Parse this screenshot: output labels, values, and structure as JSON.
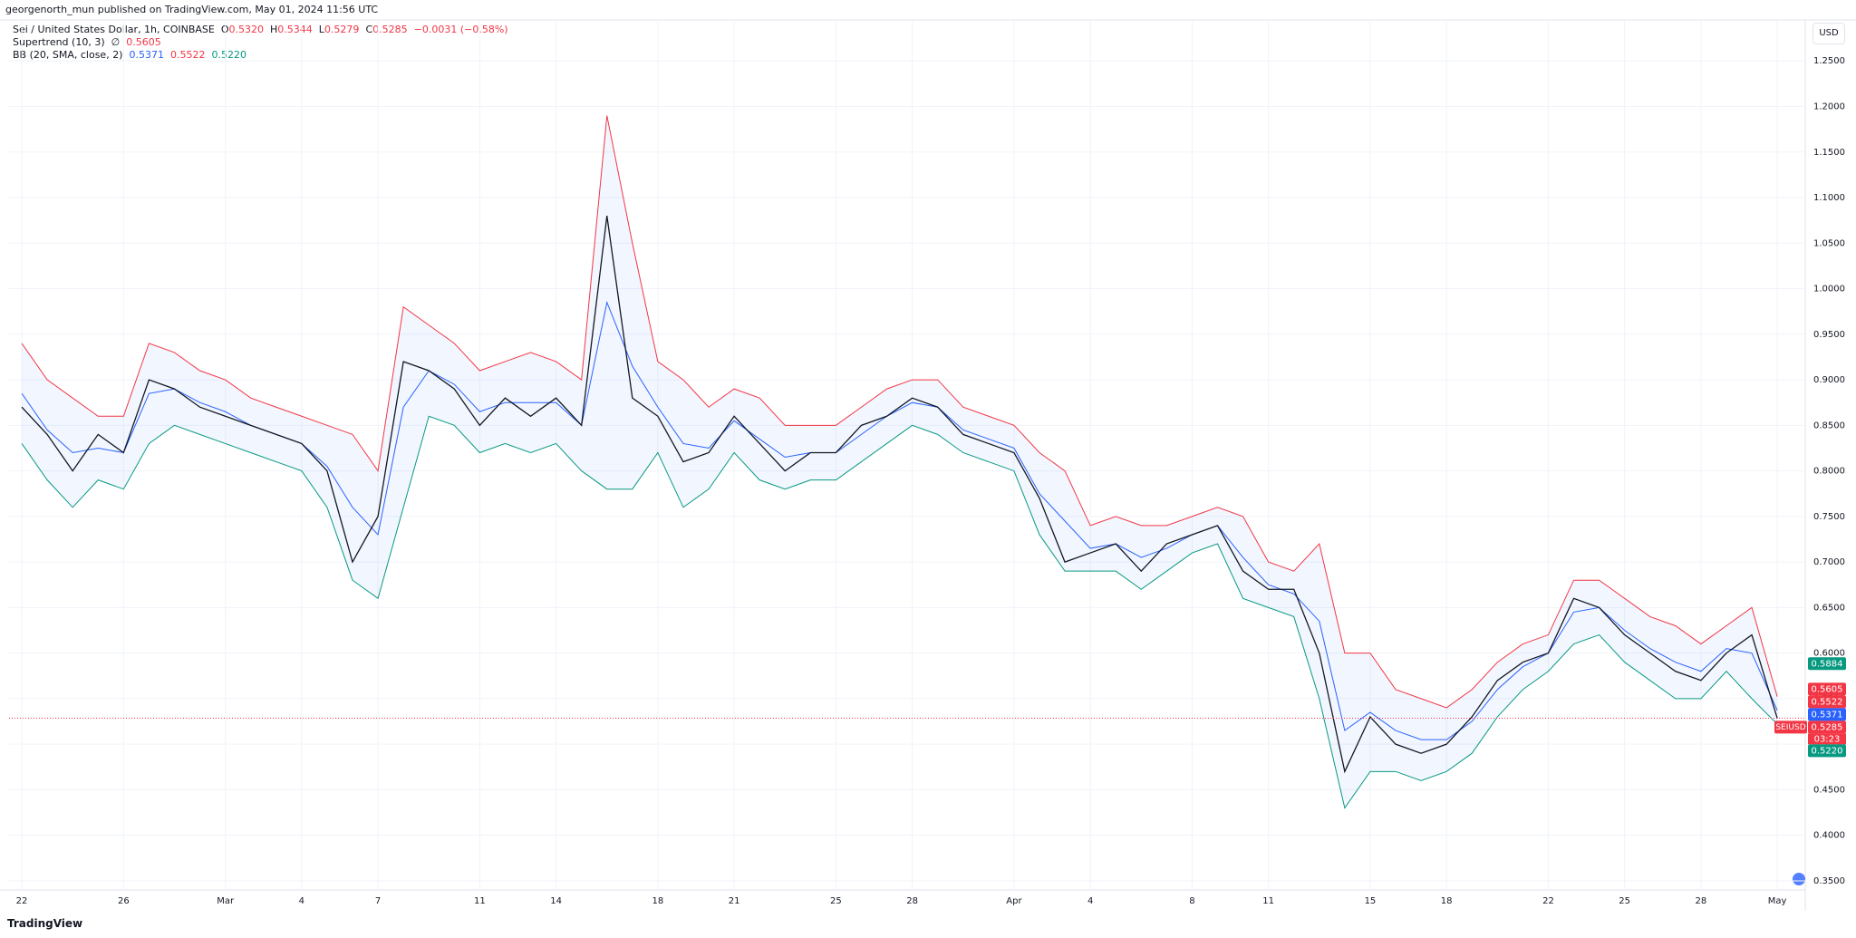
{
  "header": {
    "published": "georgenorth_mun published on TradingView.com, May 01, 2024 11:56 UTC",
    "brand": "TradingView",
    "currency": "USD"
  },
  "chart_data": {
    "type": "line",
    "title": "Sei / United States Dollar, 1h, COINBASE",
    "ohlc": {
      "o_label": "O",
      "o": "0.5320",
      "h_label": "H",
      "h": "0.5344",
      "l_label": "L",
      "l": "0.5279",
      "c_label": "C",
      "c": "0.5285",
      "change": "−0.0031 (−0.58%)"
    },
    "supertrend": {
      "label": "Supertrend (10, 3)",
      "symbol": "∅",
      "value": "0.5605"
    },
    "bb": {
      "label": "BB (20, SMA, close, 2)",
      "basis": "0.5371",
      "upper": "0.5522",
      "lower": "0.5220"
    },
    "x": [
      0,
      1,
      2,
      3,
      4,
      5,
      6,
      7,
      8,
      9,
      10,
      11,
      12,
      13,
      14,
      15,
      16,
      17,
      18,
      19,
      20,
      21,
      22,
      23,
      24,
      25,
      26,
      27,
      28,
      29,
      30,
      31,
      32,
      33,
      34,
      35,
      36,
      37,
      38,
      39,
      40,
      41,
      42,
      43,
      44,
      45,
      46,
      47,
      48,
      49,
      50,
      51,
      52,
      53,
      54,
      55,
      56,
      57,
      58,
      59,
      60,
      61,
      62,
      63,
      64,
      65,
      66,
      67,
      68,
      69
    ],
    "series": [
      {
        "color": "#131722",
        "values": [
          0.87,
          0.84,
          0.8,
          0.84,
          0.82,
          0.9,
          0.89,
          0.87,
          0.86,
          0.85,
          0.84,
          0.83,
          0.8,
          0.7,
          0.75,
          0.92,
          0.91,
          0.89,
          0.85,
          0.88,
          0.86,
          0.88,
          0.85,
          1.08,
          0.88,
          0.86,
          0.81,
          0.82,
          0.86,
          0.83,
          0.8,
          0.82,
          0.82,
          0.85,
          0.86,
          0.88,
          0.87,
          0.84,
          0.83,
          0.82,
          0.77,
          0.7,
          0.71,
          0.72,
          0.69,
          0.72,
          0.73,
          0.74,
          0.69,
          0.67,
          0.67,
          0.6,
          0.47,
          0.53,
          0.5,
          0.49,
          0.5,
          0.53,
          0.57,
          0.59,
          0.6,
          0.66,
          0.65,
          0.62,
          0.6,
          0.58,
          0.57,
          0.6,
          0.62,
          0.5285
        ]
      },
      {
        "color": "#f23645",
        "values": [
          0.94,
          0.9,
          0.88,
          0.86,
          0.86,
          0.94,
          0.93,
          0.91,
          0.9,
          0.88,
          0.87,
          0.86,
          0.85,
          0.84,
          0.8,
          0.98,
          0.96,
          0.94,
          0.91,
          0.92,
          0.93,
          0.92,
          0.9,
          1.19,
          1.05,
          0.92,
          0.9,
          0.87,
          0.89,
          0.88,
          0.85,
          0.85,
          0.85,
          0.87,
          0.89,
          0.9,
          0.9,
          0.87,
          0.86,
          0.85,
          0.82,
          0.8,
          0.74,
          0.75,
          0.74,
          0.74,
          0.75,
          0.76,
          0.75,
          0.7,
          0.69,
          0.72,
          0.6,
          0.6,
          0.56,
          0.55,
          0.54,
          0.56,
          0.59,
          0.61,
          0.62,
          0.68,
          0.68,
          0.66,
          0.64,
          0.63,
          0.61,
          0.63,
          0.65,
          0.5522
        ]
      },
      {
        "color": "#089981",
        "values": [
          0.83,
          0.79,
          0.76,
          0.79,
          0.78,
          0.83,
          0.85,
          0.84,
          0.83,
          0.82,
          0.81,
          0.8,
          0.76,
          0.68,
          0.66,
          0.76,
          0.86,
          0.85,
          0.82,
          0.83,
          0.82,
          0.83,
          0.8,
          0.78,
          0.78,
          0.82,
          0.76,
          0.78,
          0.82,
          0.79,
          0.78,
          0.79,
          0.79,
          0.81,
          0.83,
          0.85,
          0.84,
          0.82,
          0.81,
          0.8,
          0.73,
          0.69,
          0.69,
          0.69,
          0.67,
          0.69,
          0.71,
          0.72,
          0.66,
          0.65,
          0.64,
          0.55,
          0.43,
          0.47,
          0.47,
          0.46,
          0.47,
          0.49,
          0.53,
          0.56,
          0.58,
          0.61,
          0.62,
          0.59,
          0.57,
          0.55,
          0.55,
          0.58,
          0.55,
          0.522
        ]
      },
      {
        "color": "#2962ff",
        "values": [
          0.885,
          0.845,
          0.82,
          0.825,
          0.82,
          0.885,
          0.89,
          0.875,
          0.865,
          0.85,
          0.84,
          0.83,
          0.805,
          0.76,
          0.73,
          0.87,
          0.91,
          0.895,
          0.865,
          0.875,
          0.875,
          0.875,
          0.85,
          0.985,
          0.915,
          0.87,
          0.83,
          0.825,
          0.855,
          0.835,
          0.815,
          0.82,
          0.82,
          0.84,
          0.86,
          0.875,
          0.87,
          0.845,
          0.835,
          0.825,
          0.775,
          0.745,
          0.715,
          0.72,
          0.705,
          0.715,
          0.73,
          0.74,
          0.705,
          0.675,
          0.665,
          0.635,
          0.515,
          0.535,
          0.515,
          0.505,
          0.505,
          0.525,
          0.56,
          0.585,
          0.6,
          0.645,
          0.65,
          0.625,
          0.605,
          0.59,
          0.58,
          0.605,
          0.6,
          0.5371
        ]
      }
    ],
    "band_fill": "rgba(41,98,255,0.06)",
    "xlim": [
      -0.5,
      70.1
    ],
    "xticks": [
      {
        "value": 0,
        "label": "22"
      },
      {
        "value": 4,
        "label": "26"
      },
      {
        "value": 8,
        "label": "Mar"
      },
      {
        "value": 11,
        "label": "4"
      },
      {
        "value": 14,
        "label": "7"
      },
      {
        "value": 18,
        "label": "11"
      },
      {
        "value": 21,
        "label": "14"
      },
      {
        "value": 25,
        "label": "18"
      },
      {
        "value": 28,
        "label": "21"
      },
      {
        "value": 32,
        "label": "25"
      },
      {
        "value": 35,
        "label": "28"
      },
      {
        "value": 39,
        "label": "Apr"
      },
      {
        "value": 42,
        "label": "4"
      },
      {
        "value": 46,
        "label": "8"
      },
      {
        "value": 49,
        "label": "11"
      },
      {
        "value": 53,
        "label": "15"
      },
      {
        "value": 56,
        "label": "18"
      },
      {
        "value": 60,
        "label": "22"
      },
      {
        "value": 63,
        "label": "25"
      },
      {
        "value": 66,
        "label": "28"
      },
      {
        "value": 69,
        "label": "May"
      }
    ],
    "ylim": [
      0.34,
      1.295
    ],
    "yticks": [
      {
        "value": 0.35,
        "label": "0.3500"
      },
      {
        "value": 0.4,
        "label": "0.4000"
      },
      {
        "value": 0.45,
        "label": "0.4500"
      },
      {
        "value": 0.5,
        "label": "0.5000"
      },
      {
        "value": 0.55,
        "label": "0.5500"
      },
      {
        "value": 0.6,
        "label": "0.6000"
      },
      {
        "value": 0.65,
        "label": "0.6500"
      },
      {
        "value": 0.7,
        "label": "0.7000"
      },
      {
        "value": 0.75,
        "label": "0.7500"
      },
      {
        "value": 0.8,
        "label": "0.8000"
      },
      {
        "value": 0.85,
        "label": "0.8500"
      },
      {
        "value": 0.9,
        "label": "0.9000"
      },
      {
        "value": 0.95,
        "label": "0.9500"
      },
      {
        "value": 1.0,
        "label": "1.0000"
      },
      {
        "value": 1.05,
        "label": "1.0500"
      },
      {
        "value": 1.1,
        "label": "1.1000"
      },
      {
        "value": 1.15,
        "label": "1.1500"
      },
      {
        "value": 1.2,
        "label": "1.2000"
      },
      {
        "value": 1.25,
        "label": "1.2500"
      }
    ],
    "grid": true,
    "price_tags": [
      {
        "value": 0.5884,
        "label": "0.5884",
        "color": "#089981"
      },
      {
        "value": 0.5605,
        "label": "0.5605",
        "color": "#f23645"
      },
      {
        "value": 0.5522,
        "label": "0.5522",
        "color": "#f23645"
      },
      {
        "value": 0.5371,
        "label": "0.5371",
        "color": "#2962ff"
      },
      {
        "value": 0.5285,
        "label": "0.5285",
        "color": "#f23645"
      },
      {
        "value": 0.522,
        "label": "0.5220",
        "color": "#089981"
      }
    ],
    "symbol_tag": "SEIUSD",
    "countdown": "03:23"
  }
}
